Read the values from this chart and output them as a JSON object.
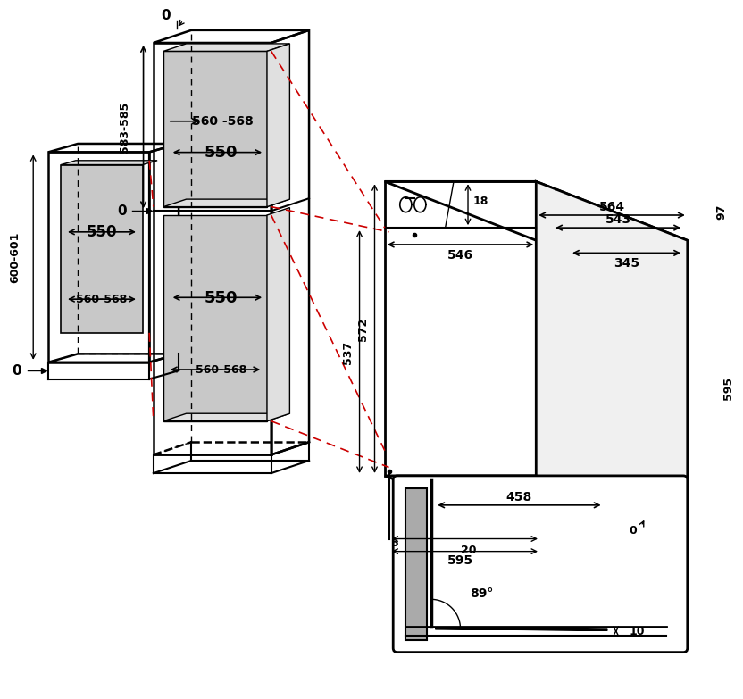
{
  "bg_color": "#ffffff",
  "line_color": "#000000",
  "red_dashed_color": "#cc0000",
  "gray_fill": "#c8c8c8",
  "light_gray": "#e0e0e0",
  "dim_color": "#000000",
  "annotations": {
    "top_zero_label": "0",
    "mid_zero_label": "0",
    "bot_zero_label": "0",
    "dim_560_568_upper": "560 -568",
    "dim_583_585": "583-585",
    "dim_550_upper": "550",
    "dim_564": "564",
    "dim_543": "543",
    "dim_546": "546",
    "dim_345": "345",
    "dim_18": "18",
    "dim_97": "97",
    "dim_537": "537",
    "dim_572": "572",
    "dim_595_side": "595",
    "dim_595_bottom": "595",
    "dim_5": "5",
    "dim_20": "20",
    "dim_600_601": "600-601",
    "dim_550_lower": "550",
    "dim_560_568_lower": "560-568",
    "dim_458": "458",
    "dim_89": "89°",
    "dim_0_door": "0",
    "dim_10": "10"
  }
}
